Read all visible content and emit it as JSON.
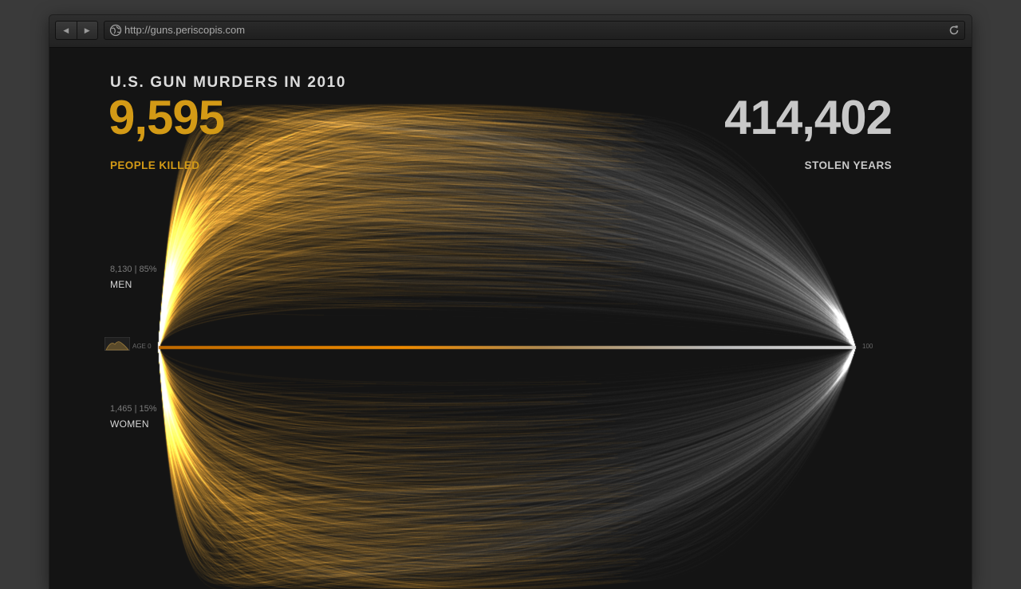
{
  "browser": {
    "url": "http://guns.periscopis.com",
    "back_icon": "back-arrow-icon",
    "forward_icon": "forward-arrow-icon",
    "globe_icon": "globe-icon",
    "reload_icon": "reload-icon"
  },
  "page": {
    "title": "U.S. GUN MURDERS IN 2010",
    "killed": {
      "number": "9,595",
      "label": "PEOPLE KILLED"
    },
    "stolen": {
      "number": "414,402",
      "label": "STOLEN YEARS"
    },
    "men": {
      "stat": "8,130 | 85%",
      "label": "MEN"
    },
    "women": {
      "stat": "1,465 | 15%",
      "label": "WOMEN"
    },
    "axis": {
      "start": "AGE 0",
      "end": "100"
    }
  },
  "colors": {
    "background": "#141414",
    "killed_accent": "#d39a16",
    "arc_orange": "#f08c00",
    "arc_grey": "#bcbcbc",
    "stolen_text": "#c8c8c8"
  }
}
